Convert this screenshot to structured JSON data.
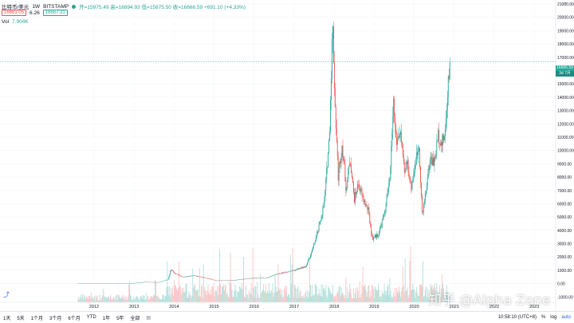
{
  "legend": {
    "symbol": "比特币/美元",
    "interval": "1W",
    "exchange": "BITSTAMP",
    "ohlc": "开=15975.49 高=16894.93 低=15875.50 收=16666.59 +691.10 (+4.33%)",
    "bid": "16661.05",
    "spread": "6.26",
    "ask": "16667.31"
  },
  "volume": {
    "label": "Vol",
    "value": "7.904K"
  },
  "price_tag": {
    "price": "16666.59",
    "time": "3d 7月"
  },
  "timeframes": [
    "1天",
    "5天",
    "1个月",
    "3个月",
    "6个月",
    "YTD",
    "1年",
    "5年",
    "全部"
  ],
  "clock": "10:58:10 (UTC+8)",
  "bottom_right": [
    "%",
    "log",
    "auto"
  ],
  "watermark": "知乎 @Alpha Zone",
  "colors": {
    "up": "#26a69a",
    "down": "#ef5350",
    "volume_up": "#b2dfdb",
    "volume_down": "#f8c6c4"
  },
  "chart_data": {
    "type": "candlestick",
    "interval": "1W",
    "x_ticks": [
      "2012",
      "2013",
      "2014",
      "2015",
      "2016",
      "2017",
      "2018",
      "2019",
      "2020",
      "2021",
      "2022",
      "2023"
    ],
    "y_ticks": [
      -1000,
      0,
      1000,
      2000,
      3000,
      4000,
      5000,
      6000,
      7000,
      8000,
      9000,
      10000,
      11000,
      12000,
      13000,
      14000,
      15000,
      16000,
      17000,
      18000,
      19000,
      20000,
      21000
    ],
    "ylim": [
      -1400,
      21300
    ],
    "last_price": 16666.59,
    "price_path": [
      [
        2011.6,
        6
      ],
      [
        2012.5,
        8
      ],
      [
        2012.9,
        13
      ],
      [
        2013.2,
        90
      ],
      [
        2013.3,
        150
      ],
      [
        2013.4,
        110
      ],
      [
        2013.6,
        100
      ],
      [
        2013.85,
        300
      ],
      [
        2013.92,
        1100
      ],
      [
        2014.0,
        800
      ],
      [
        2014.2,
        500
      ],
      [
        2014.5,
        600
      ],
      [
        2014.9,
        350
      ],
      [
        2015.05,
        220
      ],
      [
        2015.5,
        250
      ],
      [
        2015.9,
        400
      ],
      [
        2016.3,
        420
      ],
      [
        2016.5,
        650
      ],
      [
        2016.9,
        950
      ],
      [
        2017.0,
        1000
      ],
      [
        2017.3,
        1300
      ],
      [
        2017.45,
        2500
      ],
      [
        2017.6,
        4000
      ],
      [
        2017.75,
        6000
      ],
      [
        2017.88,
        11000
      ],
      [
        2017.96,
        19500
      ],
      [
        2018.02,
        13500
      ],
      [
        2018.1,
        8000
      ],
      [
        2018.2,
        10500
      ],
      [
        2018.3,
        7000
      ],
      [
        2018.4,
        9500
      ],
      [
        2018.5,
        6300
      ],
      [
        2018.6,
        7500
      ],
      [
        2018.7,
        6500
      ],
      [
        2018.85,
        5500
      ],
      [
        2018.95,
        3400
      ],
      [
        2019.1,
        3700
      ],
      [
        2019.25,
        5200
      ],
      [
        2019.4,
        8000
      ],
      [
        2019.48,
        13800
      ],
      [
        2019.55,
        10500
      ],
      [
        2019.65,
        11500
      ],
      [
        2019.75,
        8200
      ],
      [
        2019.82,
        9300
      ],
      [
        2019.92,
        7200
      ],
      [
        2020.05,
        9400
      ],
      [
        2020.12,
        10400
      ],
      [
        2020.2,
        5000
      ],
      [
        2020.3,
        7300
      ],
      [
        2020.4,
        9400
      ],
      [
        2020.5,
        9100
      ],
      [
        2020.6,
        11200
      ],
      [
        2020.7,
        10500
      ],
      [
        2020.78,
        11500
      ],
      [
        2020.85,
        15500
      ],
      [
        2020.9,
        16666.59
      ]
    ]
  }
}
